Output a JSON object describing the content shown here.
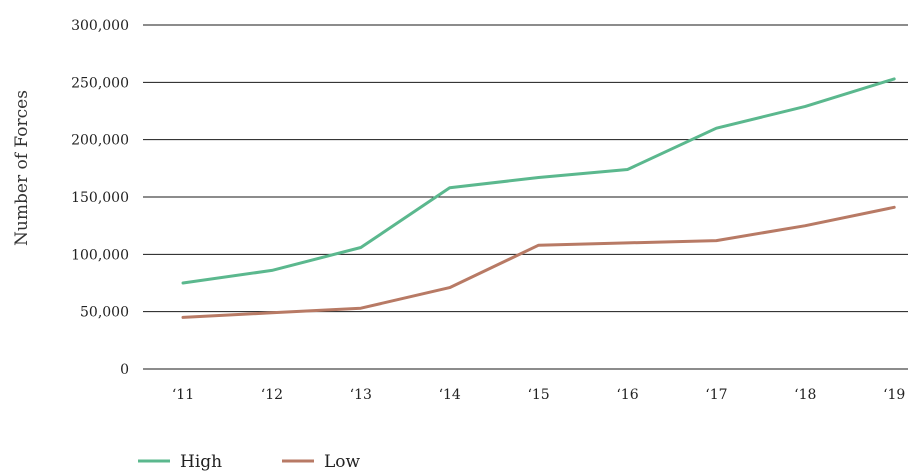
{
  "chart_data": {
    "type": "line",
    "categories": [
      "‘11",
      "‘12",
      "‘13",
      "‘14",
      "‘15",
      "‘16",
      "‘17",
      "‘18",
      "‘19"
    ],
    "series": [
      {
        "name": "High",
        "color": "#5bb88e",
        "values": [
          75000,
          86000,
          106000,
          158000,
          167000,
          174000,
          210000,
          229000,
          253000
        ]
      },
      {
        "name": "Low",
        "color": "#b87a65",
        "values": [
          45000,
          49000,
          53000,
          71000,
          108000,
          110000,
          112000,
          125000,
          141000
        ]
      }
    ],
    "y_ticks": [
      "0",
      "50,000",
      "100,000",
      "150,000",
      "200,000",
      "250,000",
      "300,000"
    ],
    "y_tick_values": [
      0,
      50000,
      100000,
      150000,
      200000,
      250000,
      300000
    ],
    "ylim": [
      0,
      300000
    ],
    "ylabel": "Number of Forces",
    "xlabel": "",
    "title": "",
    "grid": true,
    "legend_position": "bottom-left"
  }
}
